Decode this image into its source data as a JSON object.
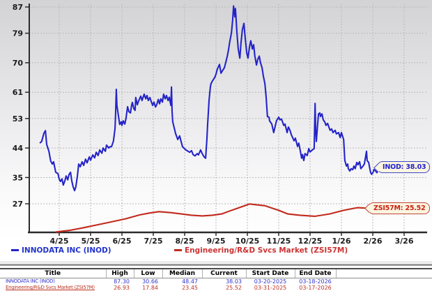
{
  "chart_data": {
    "type": "line",
    "title": "",
    "x_unit": "months relative to the 4/25 tick",
    "x_axis": {
      "tick_labels": [
        "4/25",
        "5/25",
        "6/25",
        "7/25",
        "8/25",
        "9/25",
        "10/25",
        "11/25",
        "12/25",
        "1/26",
        "2/26",
        "3/26"
      ]
    },
    "y_axis": {
      "ticks": [
        87,
        79,
        70,
        61,
        53,
        44,
        35,
        27
      ],
      "range": [
        18,
        88
      ]
    },
    "grid": true,
    "legend_position": "bottom",
    "series": [
      {
        "name": "INNODATA INC (INOD)",
        "color": "#2424c8",
        "data_name": "inod-price-line",
        "tag": "INOD: 38.03",
        "current": 38.03,
        "points": [
          [
            -0.62,
            45.5
          ],
          [
            -0.56,
            46
          ],
          [
            -0.49,
            48.5
          ],
          [
            -0.44,
            49.3
          ],
          [
            -0.4,
            45.1
          ],
          [
            -0.33,
            43
          ],
          [
            -0.27,
            40
          ],
          [
            -0.22,
            39.1
          ],
          [
            -0.18,
            39.8
          ],
          [
            -0.11,
            36.6
          ],
          [
            -0.04,
            36.2
          ],
          [
            0,
            34.5
          ],
          [
            0.04,
            33.8
          ],
          [
            0.09,
            34.6
          ],
          [
            0.13,
            32.7
          ],
          [
            0.18,
            34
          ],
          [
            0.22,
            35.5
          ],
          [
            0.27,
            34.3
          ],
          [
            0.31,
            35.9
          ],
          [
            0.36,
            36.6
          ],
          [
            0.4,
            34
          ],
          [
            0.44,
            32.3
          ],
          [
            0.49,
            31
          ],
          [
            0.53,
            32.1
          ],
          [
            0.58,
            35.5
          ],
          [
            0.62,
            39.1
          ],
          [
            0.67,
            38.3
          ],
          [
            0.73,
            39.8
          ],
          [
            0.78,
            38.7
          ],
          [
            0.84,
            40.6
          ],
          [
            0.89,
            39.5
          ],
          [
            0.96,
            41.3
          ],
          [
            1,
            40.3
          ],
          [
            1.07,
            41.9
          ],
          [
            1.13,
            41
          ],
          [
            1.18,
            42.7
          ],
          [
            1.24,
            41.7
          ],
          [
            1.29,
            43.4
          ],
          [
            1.36,
            42.4
          ],
          [
            1.4,
            44
          ],
          [
            1.47,
            43
          ],
          [
            1.51,
            44.9
          ],
          [
            1.58,
            44
          ],
          [
            1.62,
            44.4
          ],
          [
            1.67,
            44.4
          ],
          [
            1.73,
            46.1
          ],
          [
            1.78,
            50
          ],
          [
            1.8,
            55
          ],
          [
            1.82,
            61.9
          ],
          [
            1.84,
            57
          ],
          [
            1.89,
            53.6
          ],
          [
            1.93,
            51.2
          ],
          [
            1.98,
            52
          ],
          [
            2,
            50.9
          ],
          [
            2.04,
            52.3
          ],
          [
            2.09,
            51.3
          ],
          [
            2.13,
            53
          ],
          [
            2.18,
            56.6
          ],
          [
            2.22,
            55.1
          ],
          [
            2.27,
            54.7
          ],
          [
            2.31,
            57
          ],
          [
            2.33,
            57.9
          ],
          [
            2.38,
            56
          ],
          [
            2.42,
            55.5
          ],
          [
            2.44,
            59.4
          ],
          [
            2.49,
            57.2
          ],
          [
            2.53,
            58.3
          ],
          [
            2.6,
            59.8
          ],
          [
            2.64,
            58.5
          ],
          [
            2.71,
            60.4
          ],
          [
            2.76,
            59
          ],
          [
            2.8,
            60
          ],
          [
            2.84,
            58.5
          ],
          [
            2.89,
            59.4
          ],
          [
            2.93,
            58.3
          ],
          [
            2.98,
            57
          ],
          [
            3.02,
            58
          ],
          [
            3.07,
            56.5
          ],
          [
            3.11,
            57.2
          ],
          [
            3.16,
            58.8
          ],
          [
            3.2,
            57.5
          ],
          [
            3.24,
            59
          ],
          [
            3.29,
            58
          ],
          [
            3.33,
            60.4
          ],
          [
            3.38,
            59
          ],
          [
            3.42,
            60
          ],
          [
            3.47,
            58.5
          ],
          [
            3.51,
            59.5
          ],
          [
            3.56,
            57
          ],
          [
            3.58,
            62.6
          ],
          [
            3.6,
            55
          ],
          [
            3.62,
            52
          ],
          [
            3.67,
            50
          ],
          [
            3.71,
            48.5
          ],
          [
            3.78,
            46.6
          ],
          [
            3.84,
            47.7
          ],
          [
            3.93,
            44.4
          ],
          [
            4.04,
            43.4
          ],
          [
            4.11,
            43
          ],
          [
            4.16,
            42.7
          ],
          [
            4.22,
            43.2
          ],
          [
            4.27,
            42
          ],
          [
            4.33,
            41.6
          ],
          [
            4.4,
            42.3
          ],
          [
            4.44,
            41.9
          ],
          [
            4.51,
            43.4
          ],
          [
            4.56,
            42.3
          ],
          [
            4.62,
            41.3
          ],
          [
            4.67,
            40.9
          ],
          [
            4.71,
            46.6
          ],
          [
            4.73,
            50.9
          ],
          [
            4.78,
            58.7
          ],
          [
            4.82,
            62.6
          ],
          [
            4.84,
            63.6
          ],
          [
            4.89,
            64.5
          ],
          [
            4.96,
            65.5
          ],
          [
            5,
            66.5
          ],
          [
            5.04,
            68
          ],
          [
            5.11,
            69.5
          ],
          [
            5.16,
            66.8
          ],
          [
            5.2,
            67.5
          ],
          [
            5.27,
            68.5
          ],
          [
            5.31,
            70
          ],
          [
            5.36,
            72
          ],
          [
            5.4,
            74
          ],
          [
            5.44,
            76.5
          ],
          [
            5.49,
            79
          ],
          [
            5.53,
            83
          ],
          [
            5.56,
            87.3
          ],
          [
            5.6,
            84
          ],
          [
            5.62,
            86.5
          ],
          [
            5.67,
            79
          ],
          [
            5.71,
            74.2
          ],
          [
            5.76,
            71.4
          ],
          [
            5.8,
            76.3
          ],
          [
            5.84,
            80
          ],
          [
            5.89,
            82
          ],
          [
            5.93,
            77.8
          ],
          [
            5.98,
            73
          ],
          [
            6.02,
            71.4
          ],
          [
            6.07,
            75
          ],
          [
            6.11,
            76.7
          ],
          [
            6.16,
            74.2
          ],
          [
            6.2,
            75.5
          ],
          [
            6.24,
            72
          ],
          [
            6.29,
            69.3
          ],
          [
            6.33,
            71
          ],
          [
            6.38,
            72
          ],
          [
            6.42,
            70
          ],
          [
            6.47,
            68.5
          ],
          [
            6.51,
            66
          ],
          [
            6.56,
            63.6
          ],
          [
            6.6,
            59.4
          ],
          [
            6.64,
            53.6
          ],
          [
            6.69,
            53.4
          ],
          [
            6.71,
            52.3
          ],
          [
            6.78,
            51.3
          ],
          [
            6.84,
            48.7
          ],
          [
            6.93,
            52.3
          ],
          [
            7,
            53.4
          ],
          [
            7.04,
            52.6
          ],
          [
            7.09,
            52.8
          ],
          [
            7.16,
            50.9
          ],
          [
            7.2,
            51.3
          ],
          [
            7.27,
            48.7
          ],
          [
            7.31,
            50.4
          ],
          [
            7.36,
            49.4
          ],
          [
            7.4,
            48.1
          ],
          [
            7.49,
            46.2
          ],
          [
            7.53,
            47
          ],
          [
            7.6,
            44.5
          ],
          [
            7.64,
            45.5
          ],
          [
            7.69,
            43
          ],
          [
            7.73,
            40.9
          ],
          [
            7.76,
            42
          ],
          [
            7.8,
            40.2
          ],
          [
            7.84,
            42.3
          ],
          [
            7.91,
            41.7
          ],
          [
            7.96,
            43.8
          ],
          [
            8,
            42.8
          ],
          [
            8.07,
            43.4
          ],
          [
            8.13,
            43.8
          ],
          [
            8.16,
            57.6
          ],
          [
            8.18,
            49.4
          ],
          [
            8.2,
            46
          ],
          [
            8.24,
            51
          ],
          [
            8.27,
            54.4
          ],
          [
            8.31,
            54.7
          ],
          [
            8.33,
            53.6
          ],
          [
            8.38,
            54.4
          ],
          [
            8.42,
            52.6
          ],
          [
            8.47,
            51.9
          ],
          [
            8.51,
            50.9
          ],
          [
            8.56,
            51.5
          ],
          [
            8.6,
            50.4
          ],
          [
            8.64,
            49.4
          ],
          [
            8.69,
            49.8
          ],
          [
            8.73,
            48.7
          ],
          [
            8.8,
            49.4
          ],
          [
            8.84,
            48.3
          ],
          [
            8.91,
            48.7
          ],
          [
            8.96,
            47.2
          ],
          [
            9,
            48.7
          ],
          [
            9.07,
            46.6
          ],
          [
            9.11,
            40.2
          ],
          [
            9.16,
            38.5
          ],
          [
            9.2,
            39.1
          ],
          [
            9.22,
            37.7
          ],
          [
            9.27,
            37
          ],
          [
            9.31,
            37.7
          ],
          [
            9.36,
            37.4
          ],
          [
            9.4,
            38.5
          ],
          [
            9.44,
            37.7
          ],
          [
            9.49,
            39.6
          ],
          [
            9.53,
            38.9
          ],
          [
            9.58,
            39.8
          ],
          [
            9.62,
            37.7
          ],
          [
            9.69,
            38.5
          ],
          [
            9.73,
            39.1
          ],
          [
            9.8,
            43
          ],
          [
            9.82,
            40.2
          ],
          [
            9.87,
            39.6
          ],
          [
            9.93,
            36.6
          ],
          [
            9.96,
            36
          ],
          [
            10,
            36.4
          ],
          [
            10.04,
            37.4
          ],
          [
            10.09,
            37
          ],
          [
            10.13,
            36.5
          ],
          [
            10.18,
            37.5
          ],
          [
            10.22,
            38.03
          ]
        ]
      },
      {
        "name": "Engineering/R&D Svcs Market (ZSI57M)",
        "color": "#c22a1c",
        "data_name": "market-index-line",
        "tag": "ZSI57M: 25.52",
        "current": 25.52,
        "points": [
          [
            -0.11,
            18.4
          ],
          [
            0.33,
            18.9
          ],
          [
            0.78,
            19.7
          ],
          [
            1.22,
            20.6
          ],
          [
            1.67,
            21.5
          ],
          [
            2.11,
            22.4
          ],
          [
            2.56,
            23.6
          ],
          [
            2.89,
            24.2
          ],
          [
            3.18,
            24.6
          ],
          [
            3.56,
            24.3
          ],
          [
            3.89,
            23.9
          ],
          [
            4.22,
            23.5
          ],
          [
            4.56,
            23.3
          ],
          [
            4.89,
            23.5
          ],
          [
            5.18,
            23.9
          ],
          [
            5.44,
            24.8
          ],
          [
            5.76,
            25.9
          ],
          [
            6.07,
            26.93
          ],
          [
            6.29,
            26.7
          ],
          [
            6.56,
            26.4
          ],
          [
            6.78,
            25.7
          ],
          [
            7,
            25
          ],
          [
            7.29,
            23.9
          ],
          [
            7.67,
            23.5
          ],
          [
            8.16,
            23.2
          ],
          [
            8.62,
            23.9
          ],
          [
            9.07,
            25
          ],
          [
            9.51,
            25.8
          ],
          [
            9.89,
            25.6
          ],
          [
            10.22,
            25.52
          ]
        ]
      }
    ]
  },
  "legend": {
    "items": [
      {
        "label": "INNODATA INC (INOD)",
        "color": "#2233cc"
      },
      {
        "label": "Engineering/R&D Svcs Market (ZSI57M)",
        "color": "#cc3333"
      }
    ]
  },
  "table": {
    "headers": [
      "Title",
      "High",
      "Low",
      "Median",
      "Current",
      "Start Date",
      "End Date"
    ],
    "rows": [
      {
        "title": "INNODATA INC (INOD)",
        "high": "87.30",
        "low": "30.66",
        "median": "48.47",
        "current": "38.03",
        "start_date": "03-20-2025",
        "end_date": "03-18-2026"
      },
      {
        "title": "Engineering/R&D Svcs Market (ZSI57M)",
        "high": "26.93",
        "low": "17.84",
        "median": "23.45",
        "current": "25.52",
        "start_date": "03-31-2025",
        "end_date": "03-17-2026"
      }
    ]
  }
}
